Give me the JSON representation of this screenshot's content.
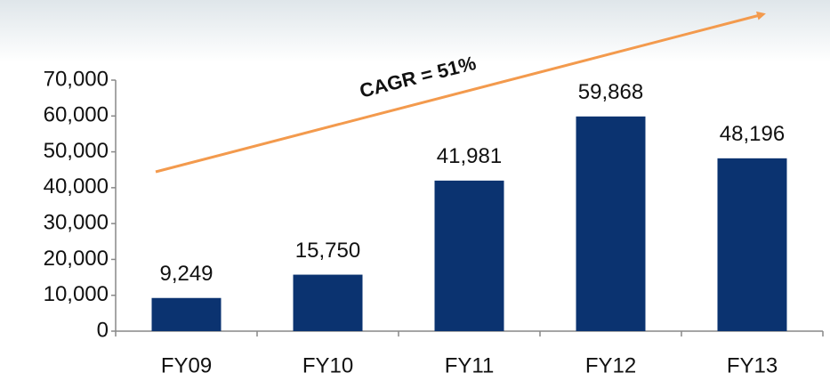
{
  "chart_data": {
    "type": "bar",
    "categories": [
      "FY09",
      "FY10",
      "FY11",
      "FY12",
      "FY13"
    ],
    "values": [
      9249,
      15750,
      41981,
      59868,
      48196
    ],
    "value_labels": [
      "9,249",
      "15,750",
      "41,981",
      "59,868",
      "48,196"
    ],
    "color": "#0b3370",
    "ylim": [
      0,
      70000
    ],
    "yticks": [
      0,
      {
        "value": 10000,
        "label": "10,000"
      },
      {
        "value": 20000,
        "label": "20,000"
      },
      {
        "value": 30000,
        "label": "30,000"
      },
      {
        "value": 40000,
        "label": "40,000"
      },
      {
        "value": 50000,
        "label": "50,000"
      },
      {
        "value": 60000,
        "label": "60,000"
      },
      {
        "value": 70000,
        "label": "70,000"
      }
    ],
    "annotation": "CAGR = 51%",
    "grid": false
  }
}
